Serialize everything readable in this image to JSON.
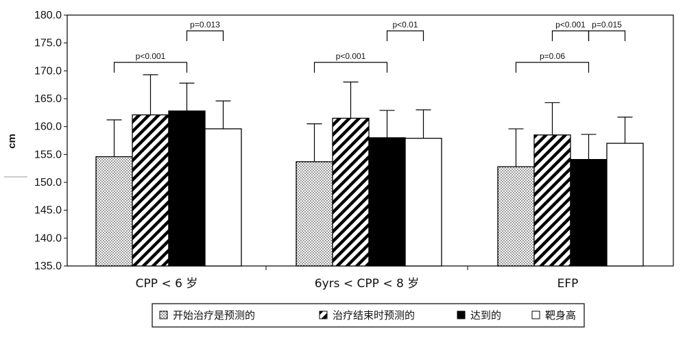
{
  "chart_data": {
    "type": "bar",
    "ylabel": "cm",
    "ylim": [
      135.0,
      180.0
    ],
    "ytick_step": 5,
    "ytick_labels": [
      "135.0",
      "140.0",
      "145.0",
      "150.0",
      "155.0",
      "160.0",
      "165.0",
      "170.0",
      "175.0",
      "180.0"
    ],
    "categories": [
      "CPP < 6 岁",
      "6yrs < CPP < 8 岁",
      "EFP"
    ],
    "series": [
      {
        "name": "开始治疗是预测的",
        "pattern": "dots",
        "values": [
          154.6,
          153.7,
          152.8
        ],
        "errors": [
          6.6,
          6.8,
          6.8
        ]
      },
      {
        "name": "治疗结束时预测的",
        "pattern": "hatch",
        "values": [
          162.1,
          161.5,
          158.5
        ],
        "errors": [
          7.2,
          6.5,
          5.8
        ]
      },
      {
        "name": "达到的",
        "pattern": "solid",
        "values": [
          162.8,
          158.0,
          154.1
        ],
        "errors": [
          5.0,
          4.9,
          4.5
        ]
      },
      {
        "name": "靶身高",
        "pattern": "empty",
        "values": [
          159.6,
          157.9,
          157.0
        ],
        "errors": [
          5.0,
          5.1,
          4.7
        ]
      }
    ],
    "annotations": [
      {
        "group": 0,
        "from": 0,
        "to": 2,
        "text": "p<0.001",
        "level": 1
      },
      {
        "group": 0,
        "from": 2,
        "to": 3,
        "text": "p=0.013",
        "level": 2
      },
      {
        "group": 1,
        "from": 0,
        "to": 2,
        "text": "p<0.001",
        "level": 1
      },
      {
        "group": 1,
        "from": 2,
        "to": 3,
        "text": "p<0.01",
        "level": 2
      },
      {
        "group": 2,
        "from": 0,
        "to": 2,
        "text": "p=0.06",
        "level": 1
      },
      {
        "group": 2,
        "from": 1,
        "to": 2,
        "text": "p<0.001",
        "level": 2
      },
      {
        "group": 2,
        "from": 2,
        "to": 3,
        "text": "p=0.015",
        "level": 2
      }
    ],
    "legend_position": "bottom",
    "grid": false,
    "colors": {
      "bar_border": "#000000",
      "solid_fill": "#000000",
      "empty_fill": "#ffffff",
      "pattern_fg": "#000000"
    }
  }
}
